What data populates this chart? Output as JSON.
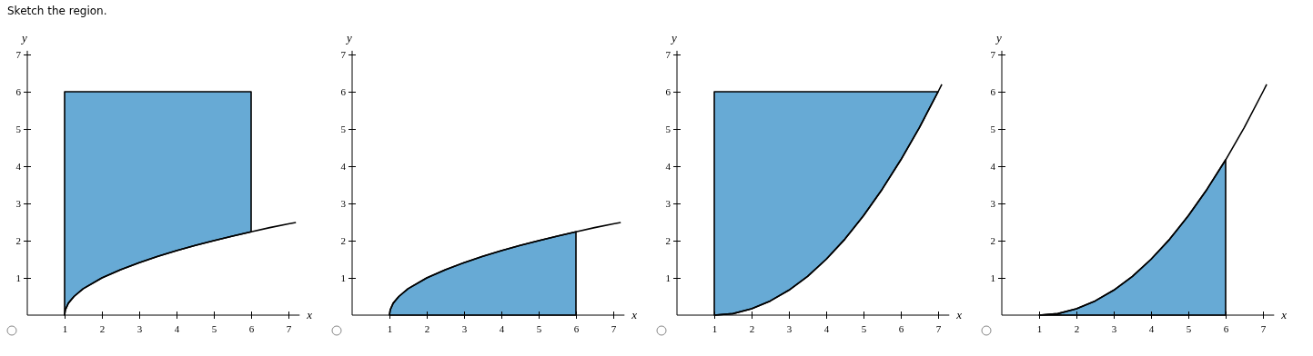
{
  "chart_data": [
    {
      "type": "line",
      "title": "Sketch the region.",
      "xlabel": "x",
      "ylabel": "y",
      "xlim": [
        0,
        7.3
      ],
      "ylim": [
        0,
        7.1
      ],
      "xticks": [
        1,
        2,
        3,
        4,
        5,
        6,
        7
      ],
      "yticks": [
        1,
        2,
        3,
        4,
        5,
        6,
        7
      ],
      "series": [
        {
          "color": "#000000",
          "x": [
            1,
            1.02,
            1.1,
            1.25,
            1.5,
            2,
            2.5,
            3,
            3.5,
            4,
            4.5,
            5,
            5.5,
            6,
            6.5,
            7,
            7.2
          ],
          "values": [
            0,
            0.14,
            0.32,
            0.5,
            0.71,
            1,
            1.22,
            1.41,
            1.58,
            1.73,
            1.87,
            2,
            2.12,
            2.24,
            2.35,
            2.45,
            2.49
          ],
          "lower": [
            0,
            0.14,
            0.32,
            0.5,
            0.71,
            1,
            1.22,
            1.41,
            1.58,
            1.73,
            1.87,
            2,
            2.12,
            2.24,
            null,
            null,
            null
          ],
          "upper": [
            6,
            6,
            6,
            6,
            6,
            6,
            6,
            6,
            6,
            6,
            6,
            6,
            6,
            6,
            null,
            null,
            null
          ]
        }
      ]
    },
    {
      "type": "line",
      "xlabel": "x",
      "ylabel": "y",
      "xlim": [
        0,
        7.3
      ],
      "ylim": [
        0,
        7.1
      ],
      "xticks": [
        1,
        2,
        3,
        4,
        5,
        6,
        7
      ],
      "yticks": [
        1,
        2,
        3,
        4,
        5,
        6,
        7
      ],
      "series": [
        {
          "color": "#000000",
          "x": [
            1,
            1.02,
            1.1,
            1.25,
            1.5,
            2,
            2.5,
            3,
            3.5,
            4,
            4.5,
            5,
            5.5,
            6,
            6.5,
            7,
            7.2
          ],
          "values": [
            0,
            0.14,
            0.32,
            0.5,
            0.71,
            1,
            1.22,
            1.41,
            1.58,
            1.73,
            1.87,
            2,
            2.12,
            2.24,
            2.35,
            2.45,
            2.49
          ],
          "lower": [
            0,
            0,
            0,
            0,
            0,
            0,
            0,
            0,
            0,
            0,
            0,
            0,
            0,
            0,
            null,
            null,
            null
          ],
          "upper": [
            0,
            0.14,
            0.32,
            0.5,
            0.71,
            1,
            1.22,
            1.41,
            1.58,
            1.73,
            1.87,
            2,
            2.12,
            2.24,
            null,
            null,
            null
          ]
        }
      ]
    },
    {
      "type": "line",
      "xlabel": "x",
      "ylabel": "y",
      "xlim": [
        0,
        7.3
      ],
      "ylim": [
        0,
        7.1
      ],
      "xticks": [
        1,
        2,
        3,
        4,
        5,
        6,
        7
      ],
      "yticks": [
        1,
        2,
        3,
        4,
        5,
        6,
        7
      ],
      "series": [
        {
          "color": "#000000",
          "x": [
            1,
            1.5,
            2,
            2.5,
            3,
            3.5,
            4,
            4.5,
            5,
            5.5,
            6,
            6.5,
            7,
            7.1
          ],
          "values": [
            0,
            0.04,
            0.17,
            0.38,
            0.67,
            1.04,
            1.5,
            2.04,
            2.67,
            3.38,
            4.17,
            5.04,
            6,
            6.2
          ],
          "lower": [
            0,
            0.04,
            0.17,
            0.38,
            0.67,
            1.04,
            1.5,
            2.04,
            2.67,
            3.38,
            4.17,
            5.04,
            6,
            null
          ],
          "upper": [
            6,
            6,
            6,
            6,
            6,
            6,
            6,
            6,
            6,
            6,
            6,
            6,
            6,
            null
          ]
        }
      ]
    },
    {
      "type": "line",
      "xlabel": "x",
      "ylabel": "y",
      "xlim": [
        0,
        7.3
      ],
      "ylim": [
        0,
        7.1
      ],
      "xticks": [
        1,
        2,
        3,
        4,
        5,
        6,
        7
      ],
      "yticks": [
        1,
        2,
        3,
        4,
        5,
        6,
        7
      ],
      "series": [
        {
          "color": "#000000",
          "x": [
            1,
            1.5,
            2,
            2.5,
            3,
            3.5,
            4,
            4.5,
            5,
            5.5,
            6,
            6.5,
            7,
            7.1
          ],
          "values": [
            0,
            0.04,
            0.17,
            0.38,
            0.67,
            1.04,
            1.5,
            2.04,
            2.67,
            3.38,
            4.17,
            5.04,
            6,
            6.2
          ],
          "lower": [
            0,
            0,
            0,
            0,
            0,
            0,
            0,
            0,
            0,
            0,
            0,
            null,
            null,
            null
          ],
          "upper": [
            0,
            0.04,
            0.17,
            0.38,
            0.67,
            1.04,
            1.5,
            2.04,
            2.67,
            3.38,
            4.17,
            null,
            null,
            null
          ]
        }
      ]
    }
  ]
}
